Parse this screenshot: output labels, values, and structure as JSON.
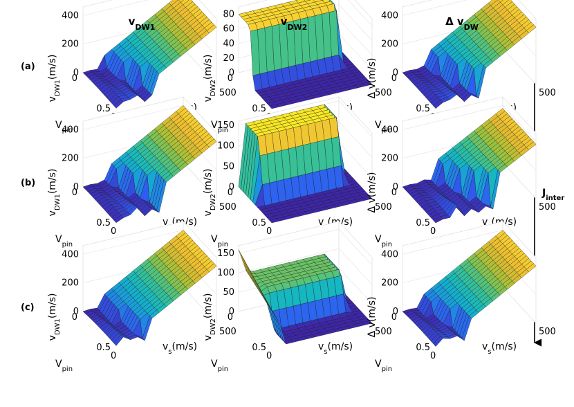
{
  "column_titles": [
    {
      "main": "v",
      "sub": "DW1"
    },
    {
      "main": "v",
      "sub": "DW2"
    },
    {
      "main": "Δ v",
      "sub": "DW"
    }
  ],
  "row_labels": [
    "(a)",
    "(b)",
    "(c)"
  ],
  "arrow_label": {
    "main": "J",
    "sub": "inter"
  },
  "axis_labels": {
    "x": {
      "main": "v",
      "sub": "s",
      "suffix": "(m/s)"
    },
    "pin": {
      "main": "V",
      "sub": "pin"
    },
    "z_col1": {
      "main": "v",
      "sub": "DW1",
      "suffix": "(m/s)"
    },
    "z_col2": {
      "main": "v",
      "sub": "DW2",
      "suffix": "(m/s)"
    },
    "z_col3": {
      "main": "Δ v",
      "sub": "",
      "suffix": "(m/s)"
    }
  },
  "colormap": [
    "#3e26a8",
    "#2f5cf1",
    "#1b98df",
    "#13b6c5",
    "#3ec28f",
    "#9ec239",
    "#e9ba30",
    "#f9d432",
    "#f9fb15"
  ],
  "chart_data": [
    {
      "type": "surface",
      "panel": "(a) v_DW1",
      "zlabel": "v_DW1(m/s)",
      "zticks": [
        0,
        200,
        400
      ],
      "zlim": [
        0,
        460
      ],
      "x_ticks": [
        0,
        500
      ],
      "pin_ticks": [
        0,
        0.5
      ],
      "x_range": [
        0,
        500
      ],
      "pin_range": [
        0,
        0.5
      ],
      "shape": "dw1",
      "params": {
        "dip": 0.42,
        "scale": 1.0
      }
    },
    {
      "type": "surface",
      "panel": "(a) v_DW2",
      "zlabel": "v_DW2(m/s)",
      "zticks": [
        0,
        20,
        40,
        60,
        80
      ],
      "zlim": [
        0,
        90
      ],
      "x_ticks": [
        0,
        500
      ],
      "pin_ticks": [
        0,
        0.5
      ],
      "x_range": [
        0,
        500
      ],
      "pin_range": [
        0,
        0.5
      ],
      "shape": "dw2a",
      "params": {
        "plateau": 80
      }
    },
    {
      "type": "surface",
      "panel": "(a) Δv",
      "zlabel": "Δ v(m/s)",
      "zticks": [
        0,
        200,
        400
      ],
      "zlim": [
        0,
        460
      ],
      "x_ticks": [
        0,
        500
      ],
      "pin_ticks": [
        0,
        0.5
      ],
      "x_range": [
        0,
        500
      ],
      "pin_range": [
        0,
        0.5
      ],
      "shape": "dw1",
      "params": {
        "dip": 0.45,
        "scale": 1.0
      }
    },
    {
      "type": "surface",
      "panel": "(b) v_DW1",
      "zlabel": "v_DW1(m/s)",
      "zticks": [
        0,
        200,
        400
      ],
      "zlim": [
        0,
        460
      ],
      "x_ticks": [
        0,
        500
      ],
      "pin_ticks": [
        0,
        0.5
      ],
      "x_range": [
        0,
        500
      ],
      "pin_range": [
        0,
        0.5
      ],
      "shape": "dw1",
      "params": {
        "dip": 0.5,
        "scale": 1.0
      }
    },
    {
      "type": "surface",
      "panel": "(b) v_DW2",
      "zlabel": "v_DW2(m/s)",
      "zticks": [
        0,
        50,
        100,
        150
      ],
      "zlim": [
        0,
        160
      ],
      "x_ticks": [
        0,
        500
      ],
      "pin_ticks": [
        0,
        0.5
      ],
      "x_range": [
        0,
        500
      ],
      "pin_range": [
        0,
        0.5
      ],
      "shape": "dw2b",
      "params": {
        "plateau": 150
      }
    },
    {
      "type": "surface",
      "panel": "(b) Δv",
      "zlabel": "Δ v(m/s)",
      "zticks": [
        0,
        200,
        400
      ],
      "zlim": [
        0,
        460
      ],
      "x_ticks": [
        0,
        500
      ],
      "pin_ticks": [
        0,
        0.5
      ],
      "x_range": [
        0,
        500
      ],
      "pin_range": [
        0,
        0.5
      ],
      "shape": "dw1",
      "params": {
        "dip": 0.6,
        "scale": 0.95
      }
    },
    {
      "type": "surface",
      "panel": "(c) v_DW1",
      "zlabel": "v_DW1(m/s)",
      "zticks": [
        0,
        200,
        400
      ],
      "zlim": [
        0,
        460
      ],
      "x_ticks": [
        0,
        500
      ],
      "pin_ticks": [
        0,
        0.5
      ],
      "x_range": [
        0,
        500
      ],
      "pin_range": [
        0,
        0.5
      ],
      "shape": "dw1",
      "params": {
        "dip": 0.3,
        "scale": 1.0
      }
    },
    {
      "type": "surface",
      "panel": "(c) v_DW2",
      "zlabel": "v_DW2(m/s)",
      "zticks": [
        0,
        50,
        100,
        150
      ],
      "zlim": [
        0,
        170
      ],
      "x_ticks": [
        0,
        500
      ],
      "pin_ticks": [
        0,
        0.5
      ],
      "x_range": [
        0,
        500
      ],
      "pin_range": [
        0,
        0.5
      ],
      "shape": "dw2c",
      "params": {
        "peak": 160,
        "plateau": 95
      }
    },
    {
      "type": "surface",
      "panel": "(c) Δv",
      "zlabel": "Δ v(m/s)",
      "zticks": [
        0,
        200,
        400
      ],
      "zlim": [
        0,
        460
      ],
      "x_ticks": [
        0,
        500
      ],
      "pin_ticks": [
        0,
        0.5
      ],
      "x_range": [
        0,
        500
      ],
      "pin_range": [
        0,
        0.5
      ],
      "shape": "dw1",
      "params": {
        "dip": 0.35,
        "scale": 1.0
      }
    }
  ]
}
